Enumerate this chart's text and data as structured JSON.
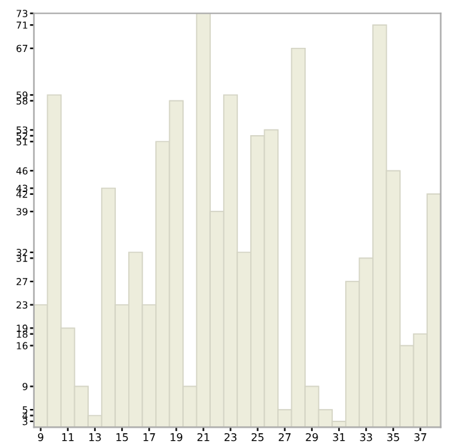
{
  "chart_data": {
    "type": "bar",
    "categories": [
      "9",
      null,
      "11",
      null,
      "13",
      null,
      "15",
      null,
      "17",
      null,
      "19",
      null,
      "21",
      null,
      "23",
      null,
      "25",
      null,
      "27",
      null,
      "29",
      null,
      "31",
      null,
      "33",
      null,
      "35",
      null,
      "37",
      null
    ],
    "values": [
      23,
      59,
      19,
      9,
      4,
      43,
      23,
      32,
      23,
      51,
      58,
      9,
      73,
      39,
      59,
      32,
      52,
      53,
      5,
      67,
      9,
      5,
      3,
      27,
      31,
      71,
      46,
      16,
      18,
      42
    ],
    "color": "#ededdc",
    "ylim": [
      2,
      73
    ],
    "yticks": [
      3,
      4,
      5,
      9,
      16,
      18,
      19,
      23,
      27,
      31,
      32,
      39,
      42,
      43,
      46,
      51,
      52,
      53,
      58,
      59,
      67,
      71,
      73
    ],
    "grid": false
  }
}
